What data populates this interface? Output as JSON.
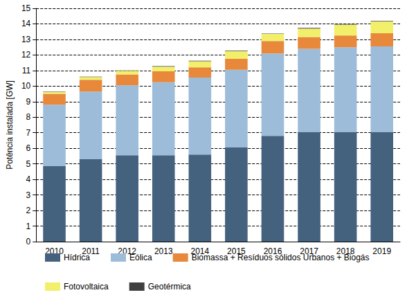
{
  "chart_data": {
    "type": "bar",
    "stacked": true,
    "grid": true,
    "legend": "bottom",
    "y_label": "Potência instalada [GW]",
    "categories": [
      "2010",
      "2011",
      "2012",
      "2013",
      "2014",
      "2015",
      "2016",
      "2017",
      "2018",
      "2019"
    ],
    "series": [
      {
        "name": "Hídrica",
        "color": "#44617e",
        "values": [
          4.85,
          5.3,
          5.55,
          5.55,
          5.6,
          6.05,
          6.8,
          7.05,
          7.05,
          7.05
        ]
      },
      {
        "name": "Eólica",
        "color": "#9dbcd9",
        "values": [
          3.95,
          4.35,
          4.5,
          4.7,
          4.95,
          5.0,
          5.3,
          5.35,
          5.45,
          5.5
        ]
      },
      {
        "name": "Biomassa + Resíduos sólidos Urbanos + Biogás",
        "color": "#e8883a",
        "values": [
          0.7,
          0.75,
          0.7,
          0.7,
          0.65,
          0.7,
          0.8,
          0.75,
          0.75,
          0.85
        ]
      },
      {
        "name": "Fotovoltaica",
        "color": "#f2ef6b",
        "values": [
          0.12,
          0.18,
          0.23,
          0.3,
          0.4,
          0.5,
          0.45,
          0.55,
          0.7,
          0.75
        ]
      },
      {
        "name": "Geotérmica",
        "color": "#3f3f3f",
        "values": [
          0.03,
          0.03,
          0.03,
          0.03,
          0.03,
          0.03,
          0.03,
          0.04,
          0.04,
          0.04
        ]
      }
    ],
    "ylim": [
      0,
      15
    ],
    "yticks": [
      0,
      1,
      2,
      3,
      4,
      5,
      6,
      7,
      8,
      9,
      10,
      11,
      12,
      13,
      14,
      15
    ]
  }
}
